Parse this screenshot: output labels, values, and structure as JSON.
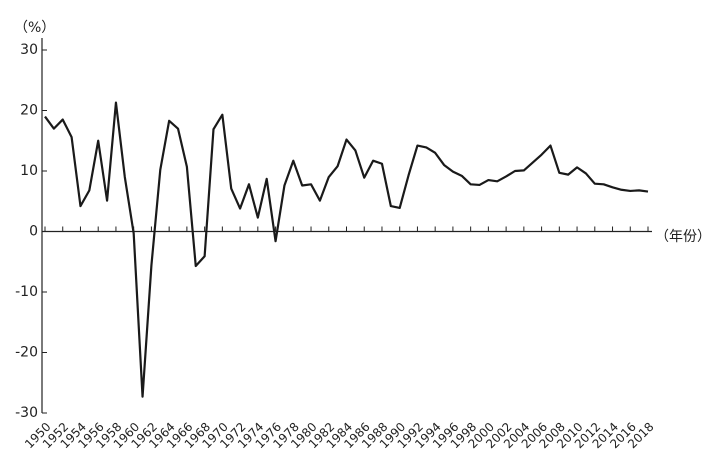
{
  "chart_data": {
    "type": "line",
    "y_label": "（%）",
    "x_label": "（年份）",
    "x": [
      1950,
      1951,
      1952,
      1953,
      1954,
      1955,
      1956,
      1957,
      1958,
      1959,
      1960,
      1961,
      1962,
      1963,
      1964,
      1965,
      1966,
      1967,
      1968,
      1969,
      1970,
      1971,
      1972,
      1973,
      1974,
      1975,
      1976,
      1977,
      1978,
      1979,
      1980,
      1981,
      1982,
      1983,
      1984,
      1985,
      1986,
      1987,
      1988,
      1989,
      1990,
      1991,
      1992,
      1993,
      1994,
      1995,
      1996,
      1997,
      1998,
      1999,
      2000,
      2001,
      2002,
      2003,
      2004,
      2005,
      2006,
      2007,
      2008,
      2009,
      2010,
      2011,
      2012,
      2013,
      2014,
      2015,
      2016,
      2017,
      2018
    ],
    "series": [
      {
        "color": "#1a1a1a",
        "values": [
          19,
          17,
          18.5,
          15.6,
          4.2,
          6.8,
          15,
          5.1,
          21.3,
          9,
          -0.3,
          -27.3,
          -5.6,
          10.2,
          18.3,
          17,
          10.7,
          -5.7,
          -4.1,
          16.9,
          19.3,
          7.1,
          3.8,
          7.8,
          2.3,
          8.7,
          -1.6,
          7.6,
          11.7,
          7.6,
          7.8,
          5.1,
          9,
          10.8,
          15.2,
          13.4,
          8.9,
          11.7,
          11.2,
          4.2,
          3.9,
          9.3,
          14.2,
          13.9,
          13,
          11,
          9.9,
          9.2,
          7.8,
          7.7,
          8.5,
          8.3,
          9.1,
          10,
          10.1,
          11.4,
          12.7,
          14.2,
          9.7,
          9.4,
          10.6,
          9.6,
          7.9,
          7.8,
          7.3,
          6.9,
          6.7,
          6.8,
          6.6
        ]
      }
    ],
    "xlim": [
      1950,
      2018
    ],
    "xticks": [
      1950,
      1952,
      1954,
      1956,
      1958,
      1960,
      1962,
      1964,
      1966,
      1968,
      1970,
      1972,
      1974,
      1976,
      1978,
      1980,
      1982,
      1984,
      1986,
      1988,
      1990,
      1992,
      1994,
      1996,
      1998,
      2000,
      2002,
      2004,
      2006,
      2008,
      2010,
      2012,
      2014,
      2016,
      2018
    ],
    "ylim": [
      -30,
      30
    ],
    "yticks": [
      -30,
      -20,
      -10,
      0,
      10,
      20,
      30
    ],
    "grid": false
  }
}
